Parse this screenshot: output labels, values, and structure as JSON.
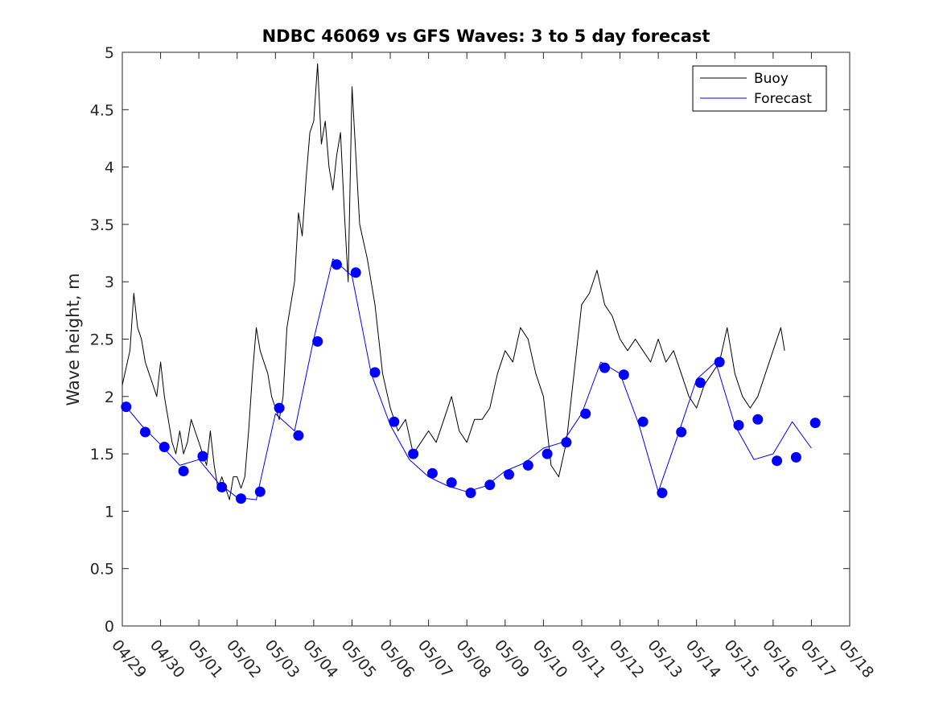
{
  "chart_data": {
    "type": "line",
    "title": "NDBC 46069 vs GFS Waves: 3 to 5 day forecast",
    "xlabel": "",
    "ylabel": "Wave height, m",
    "ylim": [
      0,
      5
    ],
    "yticks": [
      0,
      0.5,
      1,
      1.5,
      2,
      2.5,
      3,
      3.5,
      4,
      4.5,
      5
    ],
    "xlim": [
      "04/29",
      "05/18"
    ],
    "xtick_labels": [
      "04/29",
      "04/30",
      "05/01",
      "05/02",
      "05/03",
      "05/04",
      "05/05",
      "05/06",
      "05/07",
      "05/08",
      "05/09",
      "05/10",
      "05/11",
      "05/12",
      "05/13",
      "05/14",
      "05/15",
      "05/16",
      "05/17",
      "05/18"
    ],
    "x_unit": "day",
    "grid": false,
    "legend": {
      "placement": "top-right",
      "entries": [
        "Buoy",
        "Forecast"
      ]
    },
    "colors": {
      "buoy": "#000000",
      "forecast": "#0000ff",
      "markers": "#0000ff"
    },
    "series": [
      {
        "name": "Buoy",
        "color": "#000000",
        "x": [
          0,
          0.2,
          0.3,
          0.4,
          0.5,
          0.6,
          0.7,
          0.8,
          0.9,
          1.0,
          1.1,
          1.2,
          1.3,
          1.4,
          1.5,
          1.6,
          1.7,
          1.8,
          1.9,
          2.0,
          2.1,
          2.2,
          2.3,
          2.4,
          2.5,
          2.6,
          2.7,
          2.8,
          2.9,
          3.0,
          3.1,
          3.2,
          3.3,
          3.4,
          3.5,
          3.6,
          3.7,
          3.8,
          3.9,
          4.0,
          4.1,
          4.2,
          4.3,
          4.4,
          4.5,
          4.6,
          4.7,
          4.8,
          4.9,
          5.0,
          5.1,
          5.2,
          5.3,
          5.4,
          5.5,
          5.6,
          5.7,
          5.8,
          5.9,
          6.0,
          6.2,
          6.4,
          6.6,
          6.8,
          7.0,
          7.2,
          7.4,
          7.6,
          7.8,
          8.0,
          8.2,
          8.4,
          8.6,
          8.8,
          9.0,
          9.2,
          9.4,
          9.6,
          9.8,
          10.0,
          10.2,
          10.4,
          10.6,
          10.8,
          11.0,
          11.2,
          11.4,
          11.6,
          11.8,
          12.0,
          12.2,
          12.4,
          12.6,
          12.8,
          13.0,
          13.2,
          13.4,
          13.6,
          13.8,
          14.0,
          14.2,
          14.4,
          14.6,
          14.8,
          15.0,
          15.2,
          15.4,
          15.6,
          15.8,
          16.0,
          16.2,
          16.4,
          16.6,
          16.8,
          17.0,
          17.2,
          17.3
        ],
        "values": [
          2.1,
          2.4,
          2.9,
          2.6,
          2.5,
          2.3,
          2.2,
          2.1,
          2.0,
          2.3,
          2.0,
          1.8,
          1.6,
          1.5,
          1.7,
          1.5,
          1.6,
          1.8,
          1.7,
          1.6,
          1.5,
          1.4,
          1.7,
          1.4,
          1.2,
          1.3,
          1.2,
          1.1,
          1.3,
          1.3,
          1.2,
          1.3,
          1.7,
          2.2,
          2.6,
          2.4,
          2.3,
          2.2,
          2.0,
          1.9,
          1.8,
          2.0,
          2.6,
          2.8,
          3.0,
          3.6,
          3.4,
          3.9,
          4.3,
          4.4,
          4.9,
          4.2,
          4.4,
          4.0,
          3.8,
          4.1,
          4.3,
          3.6,
          3.0,
          4.7,
          3.5,
          3.2,
          2.8,
          2.2,
          1.9,
          1.7,
          1.8,
          1.5,
          1.6,
          1.7,
          1.6,
          1.8,
          2.0,
          1.7,
          1.6,
          1.8,
          1.8,
          1.9,
          2.2,
          2.4,
          2.3,
          2.6,
          2.5,
          2.2,
          2.0,
          1.4,
          1.3,
          1.6,
          2.2,
          2.8,
          2.9,
          3.1,
          2.8,
          2.7,
          2.5,
          2.4,
          2.5,
          2.4,
          2.3,
          2.5,
          2.3,
          2.4,
          2.2,
          2.0,
          1.9,
          2.1,
          2.2,
          2.3,
          2.6,
          2.2,
          2.0,
          1.9,
          2.0,
          2.2,
          2.4,
          2.6,
          2.4
        ]
      },
      {
        "name": "Forecast",
        "color": "#0000ff",
        "x": [
          0,
          0.5,
          1.0,
          1.5,
          2.0,
          2.5,
          3.0,
          3.5,
          4.0,
          4.5,
          5.0,
          5.5,
          6.0,
          6.5,
          7.0,
          7.5,
          8.0,
          8.5,
          9.0,
          9.5,
          10.0,
          10.5,
          11.0,
          11.5,
          12.0,
          12.5,
          13.0,
          13.5,
          14.0,
          14.5,
          15.0,
          15.5,
          16.0,
          16.5,
          17.0,
          17.5,
          18.0
        ],
        "values": [
          1.95,
          1.75,
          1.58,
          1.4,
          1.45,
          1.25,
          1.12,
          1.1,
          1.85,
          1.7,
          2.5,
          3.2,
          3.05,
          2.2,
          1.75,
          1.45,
          1.3,
          1.22,
          1.17,
          1.22,
          1.35,
          1.42,
          1.55,
          1.6,
          1.85,
          2.3,
          2.2,
          1.75,
          1.17,
          1.65,
          2.15,
          2.3,
          1.75,
          1.45,
          1.5,
          1.78,
          1.55
        ]
      }
    ],
    "markers": {
      "name": "Forecast",
      "x": [
        0.1,
        0.6,
        1.1,
        1.6,
        2.1,
        2.6,
        3.1,
        3.6,
        4.1,
        4.6,
        5.1,
        5.6,
        6.1,
        6.6,
        7.1,
        7.6,
        8.1,
        8.6,
        9.1,
        9.6,
        10.1,
        10.6,
        11.1,
        11.6,
        12.1,
        12.6,
        13.1,
        13.6,
        14.1,
        14.6,
        15.1,
        15.6,
        16.1,
        16.6,
        17.1,
        17.6,
        18.1
      ],
      "values": [
        1.91,
        1.69,
        1.56,
        1.35,
        1.48,
        1.21,
        1.11,
        1.17,
        1.9,
        1.66,
        2.48,
        3.15,
        3.08,
        2.21,
        1.78,
        1.5,
        1.33,
        1.25,
        1.16,
        1.23,
        1.32,
        1.4,
        1.5,
        1.6,
        1.85,
        2.25,
        2.19,
        1.78,
        1.16,
        1.69,
        2.12,
        2.3,
        1.75,
        1.8,
        1.44,
        1.47,
        1.77
      ]
    }
  }
}
